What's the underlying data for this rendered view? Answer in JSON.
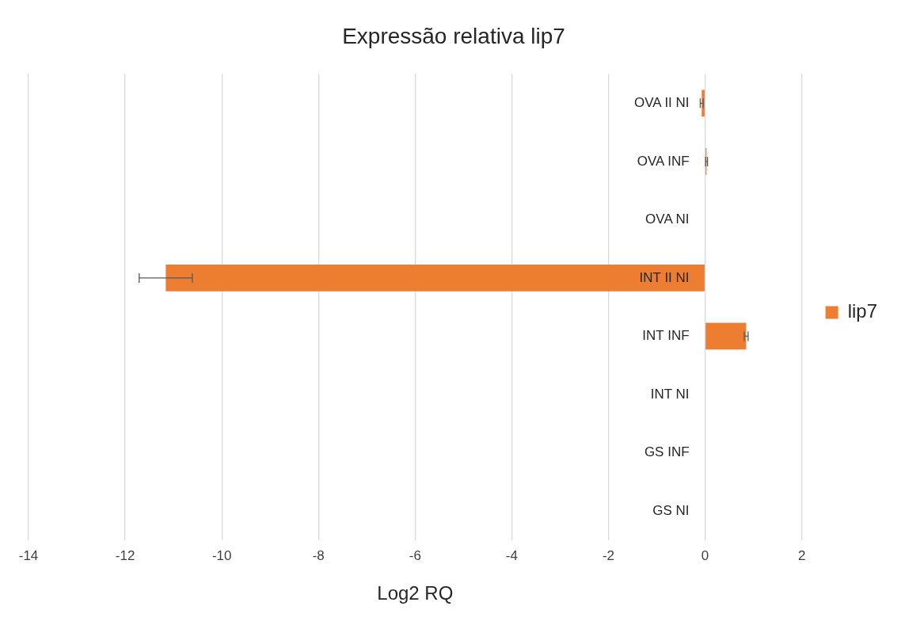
{
  "chart_data": {
    "type": "bar",
    "orientation": "horizontal",
    "title": "Expressão relativa lip7",
    "xlabel": "Log2 RQ",
    "categories": [
      "OVA II NI",
      "OVA INF",
      "OVA NI",
      "INT II NI",
      "INT INF",
      "INT NI",
      "GS INF",
      "GS NI"
    ],
    "series": [
      {
        "name": "lip7",
        "color": "#ed7d31",
        "values": [
          -0.07,
          0.03,
          0,
          -11.16,
          0.85,
          0,
          0,
          0
        ],
        "errors": [
          0.03,
          0.02,
          null,
          0.55,
          0.04,
          null,
          null,
          null
        ]
      }
    ],
    "xlim": [
      -14,
      2
    ],
    "xticks": [
      -14,
      -12,
      -10,
      -8,
      -6,
      -4,
      -2,
      0,
      2
    ],
    "grid": "x",
    "legend": "right"
  }
}
